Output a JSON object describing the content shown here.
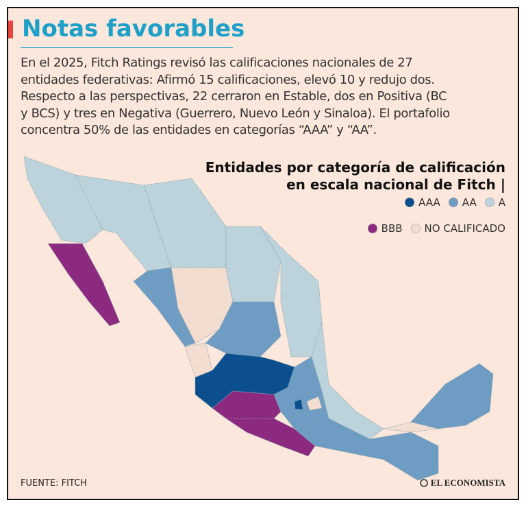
{
  "header": {
    "title": "Notas favorables"
  },
  "body": {
    "lines": [
      "En el 2025, Fitch Ratings revisó las calificaciones nacionales de 27",
      "entidades federativas: Afirmó 15 calificaciones, elevó 10 y redujo dos.",
      "Respecto a las perspectivas, 22 cerraron en Estable, dos en Positiva (BC",
      "y BCS) y tres en Negativa (Guerrero, Nuevo León y Sinaloa). El portafolio",
      "concentra 50% de las entidades en categorías “AAA” y “AA”."
    ]
  },
  "map": {
    "title_lines": [
      "Entidades por categoría de calificación",
      "en escala nacional de Fitch |"
    ],
    "legend": [
      {
        "label": "AAA",
        "color": "#0b4f8e"
      },
      {
        "label": "AA",
        "color": "#6f9cc3"
      },
      {
        "label": "A",
        "color": "#bdd3db"
      },
      {
        "label": "BBB",
        "color": "#8c2a7f"
      },
      {
        "label": "NO CALIFICADO",
        "color": "#f2ddd0"
      }
    ],
    "source": "FUENTE: FITCH"
  },
  "brand": "EL ECONOMISTA"
}
